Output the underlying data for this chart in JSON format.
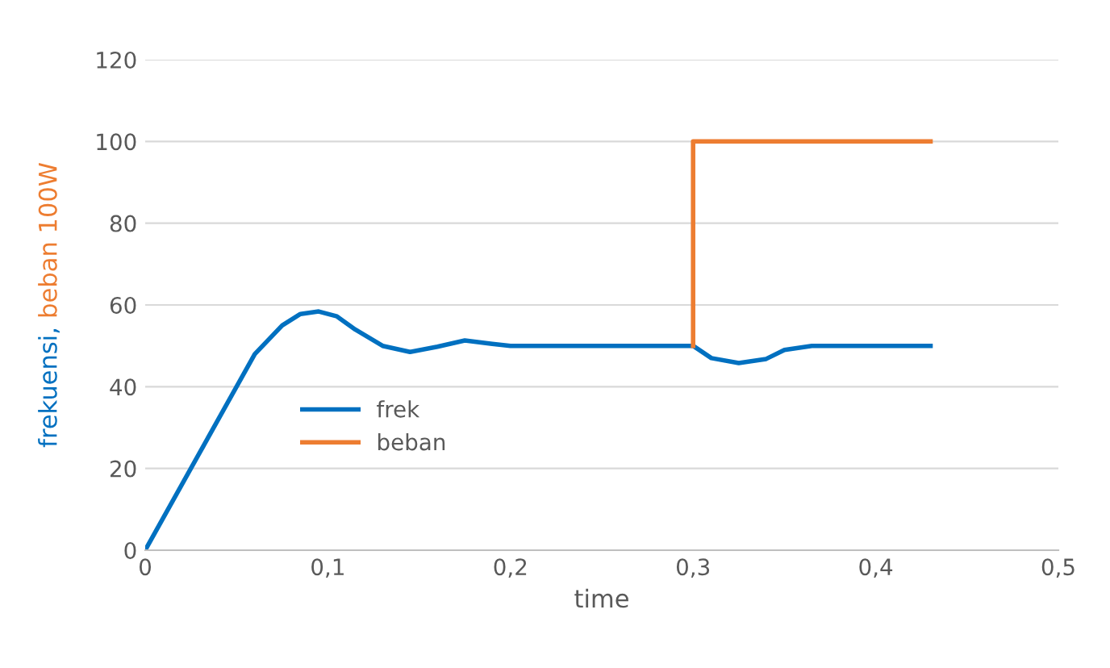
{
  "chart_data": {
    "type": "line",
    "xlabel": "time",
    "ylabel": "frekuensi, beban 100W",
    "xlim": [
      0,
      0.5
    ],
    "xticks": [
      {
        "value": 0,
        "label": "0"
      },
      {
        "value": 0.1,
        "label": "0,1"
      },
      {
        "value": 0.2,
        "label": "0,2"
      },
      {
        "value": 0.3,
        "label": "0,3"
      },
      {
        "value": 0.4,
        "label": "0,4"
      },
      {
        "value": 0.5,
        "label": "0,5"
      }
    ],
    "ylim": [
      0,
      120
    ],
    "yticks": [
      0,
      20,
      40,
      60,
      80,
      100,
      120
    ],
    "grid": "y",
    "legend": "left",
    "marker": "none",
    "line_style": "solid",
    "series": [
      {
        "name": "frek",
        "color": "#0070c0",
        "x": [
          0,
          0.03,
          0.06,
          0.075,
          0.085,
          0.095,
          0.105,
          0.115,
          0.13,
          0.145,
          0.16,
          0.175,
          0.19,
          0.2,
          0.25,
          0.3,
          0.31,
          0.325,
          0.34,
          0.35,
          0.365,
          0.4,
          0.43
        ],
        "values": [
          0,
          24,
          48,
          55,
          57.8,
          58.4,
          57.2,
          54,
          50,
          48.5,
          49.8,
          51.3,
          50.5,
          50,
          50,
          50,
          47,
          45.8,
          46.8,
          49,
          50,
          50,
          50
        ]
      },
      {
        "name": "beban",
        "color": "#ed7d31",
        "x": [
          0.3,
          0.3,
          0.43
        ],
        "values": [
          50,
          100,
          100
        ]
      }
    ]
  }
}
